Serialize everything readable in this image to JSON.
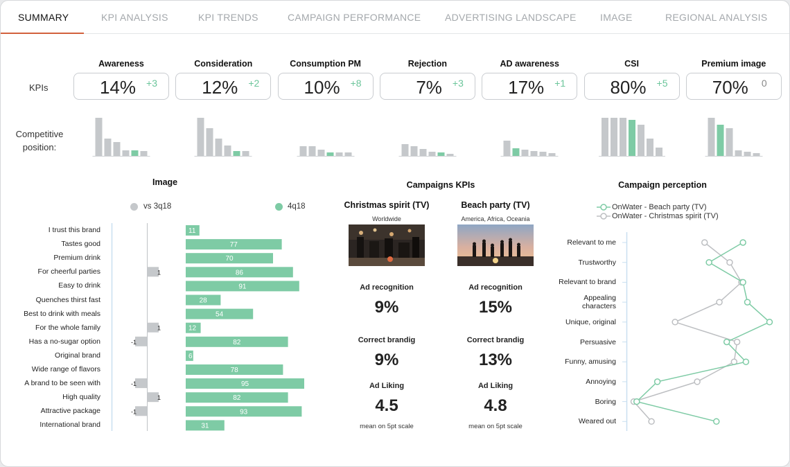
{
  "tabs": [
    {
      "label": "SUMMARY"
    },
    {
      "label": "KPI ANALYSIS"
    },
    {
      "label": "KPI TRENDS"
    },
    {
      "label": "CAMPAIGN PERFORMANCE"
    },
    {
      "label": "ADVERTISING LANDSCAPE"
    },
    {
      "label": "IMAGE"
    },
    {
      "label": "REGIONAL ANALYSIS"
    }
  ],
  "kpis_label": "KPIs",
  "competitive_label": "Competitive position:",
  "kpis": [
    {
      "name": "Awareness",
      "value": "14%",
      "delta": "+3"
    },
    {
      "name": "Consideration",
      "value": "12%",
      "delta": "+2"
    },
    {
      "name": "Consumption PM",
      "value": "10%",
      "delta": "+8"
    },
    {
      "name": "Rejection",
      "value": "7%",
      "delta": "+3"
    },
    {
      "name": "AD awareness",
      "value": "17%",
      "delta": "+1"
    },
    {
      "name": "CSI",
      "value": "80%",
      "delta": "+5"
    },
    {
      "name": "Premium image",
      "value": "70%",
      "delta": "0"
    }
  ],
  "competitive_position": [
    {
      "values": [
        55,
        25,
        20,
        8,
        8,
        7
      ],
      "highlight": 4
    },
    {
      "values": [
        55,
        40,
        25,
        15,
        7,
        7
      ],
      "highlight": 4
    },
    {
      "values": [
        14,
        14,
        9,
        5,
        5,
        5
      ],
      "highlight": 3
    },
    {
      "values": [
        17,
        14,
        10,
        6,
        5,
        3
      ],
      "highlight": 4
    },
    {
      "values": [
        22,
        11,
        9,
        7,
        6,
        4
      ],
      "highlight": 1
    },
    {
      "values": [
        55,
        55,
        55,
        52,
        45,
        25,
        12
      ],
      "highlight": 3
    },
    {
      "values": [
        55,
        45,
        40,
        8,
        6,
        4
      ],
      "highlight": 1
    }
  ],
  "colors": {
    "accent_green": "#7ecba5",
    "grey_bar": "#c5c8cb",
    "tab_underline": "#d2603c",
    "delta_green": "#6bc59a"
  },
  "image_section": {
    "title": "Image",
    "legend_prev": "vs 3q18",
    "legend_curr": "4q18"
  },
  "campaigns": {
    "title": "Campaigns KPIs",
    "items": [
      {
        "name": "Christmas spirit (TV)",
        "region": "Worldwide",
        "ad_recognition": "9%",
        "correct_branding": "9%",
        "ad_liking": "4.5"
      },
      {
        "name": "Beach party (TV)",
        "region": "America, Africa, Oceania",
        "ad_recognition": "15%",
        "correct_branding": "13%",
        "ad_liking": "4.8"
      }
    ],
    "labels": {
      "ad_recognition": "Ad recognition",
      "correct_branding": "Correct brandig",
      "ad_liking": "Ad Liking",
      "note": "mean on 5pt scale"
    }
  },
  "perception": {
    "title": "Campaign perception",
    "legend": [
      "OnWater - Beach party (TV)",
      "OnWater - Christmas spirit (TV)"
    ]
  },
  "chart_data": [
    {
      "type": "bar",
      "title": "Image",
      "categories": [
        "I trust this brand",
        "Tastes good",
        "Premium drink",
        "For cheerful parties",
        "Easy to drink",
        "Quenches thirst fast",
        "Best to drink with meals",
        "For the whole family",
        "Has a no-sugar option",
        "Original brand",
        "Wide range of flavors",
        "A brand to be seen with",
        "High quality",
        "Attractive package",
        "International brand"
      ],
      "series": [
        {
          "name": "vs 3q18",
          "values": [
            0,
            0,
            0,
            1,
            0,
            0,
            0,
            1,
            -1,
            0,
            0,
            -1,
            1,
            -1,
            0
          ]
        },
        {
          "name": "4q18",
          "values": [
            11,
            77,
            70,
            86,
            91,
            28,
            54,
            12,
            82,
            6,
            78,
            95,
            82,
            93,
            31
          ]
        }
      ]
    },
    {
      "type": "line",
      "title": "Campaign perception",
      "categories": [
        "Relevant to me",
        "Trustworthy",
        "Relevant to brand",
        "Appealing characters",
        "Unique, original",
        "Persuasive",
        "Funny, amusing",
        "Annoying",
        "Boring",
        "Weared out"
      ],
      "series": [
        {
          "name": "OnWater - Beach party (TV)",
          "values": [
            0.78,
            0.55,
            0.78,
            0.81,
            0.96,
            0.67,
            0.8,
            0.2,
            0.06,
            0.6
          ]
        },
        {
          "name": "OnWater - Christmas spirit (TV)",
          "values": [
            0.52,
            0.69,
            0.77,
            0.62,
            0.32,
            0.74,
            0.72,
            0.47,
            0.04,
            0.16
          ]
        }
      ]
    }
  ]
}
